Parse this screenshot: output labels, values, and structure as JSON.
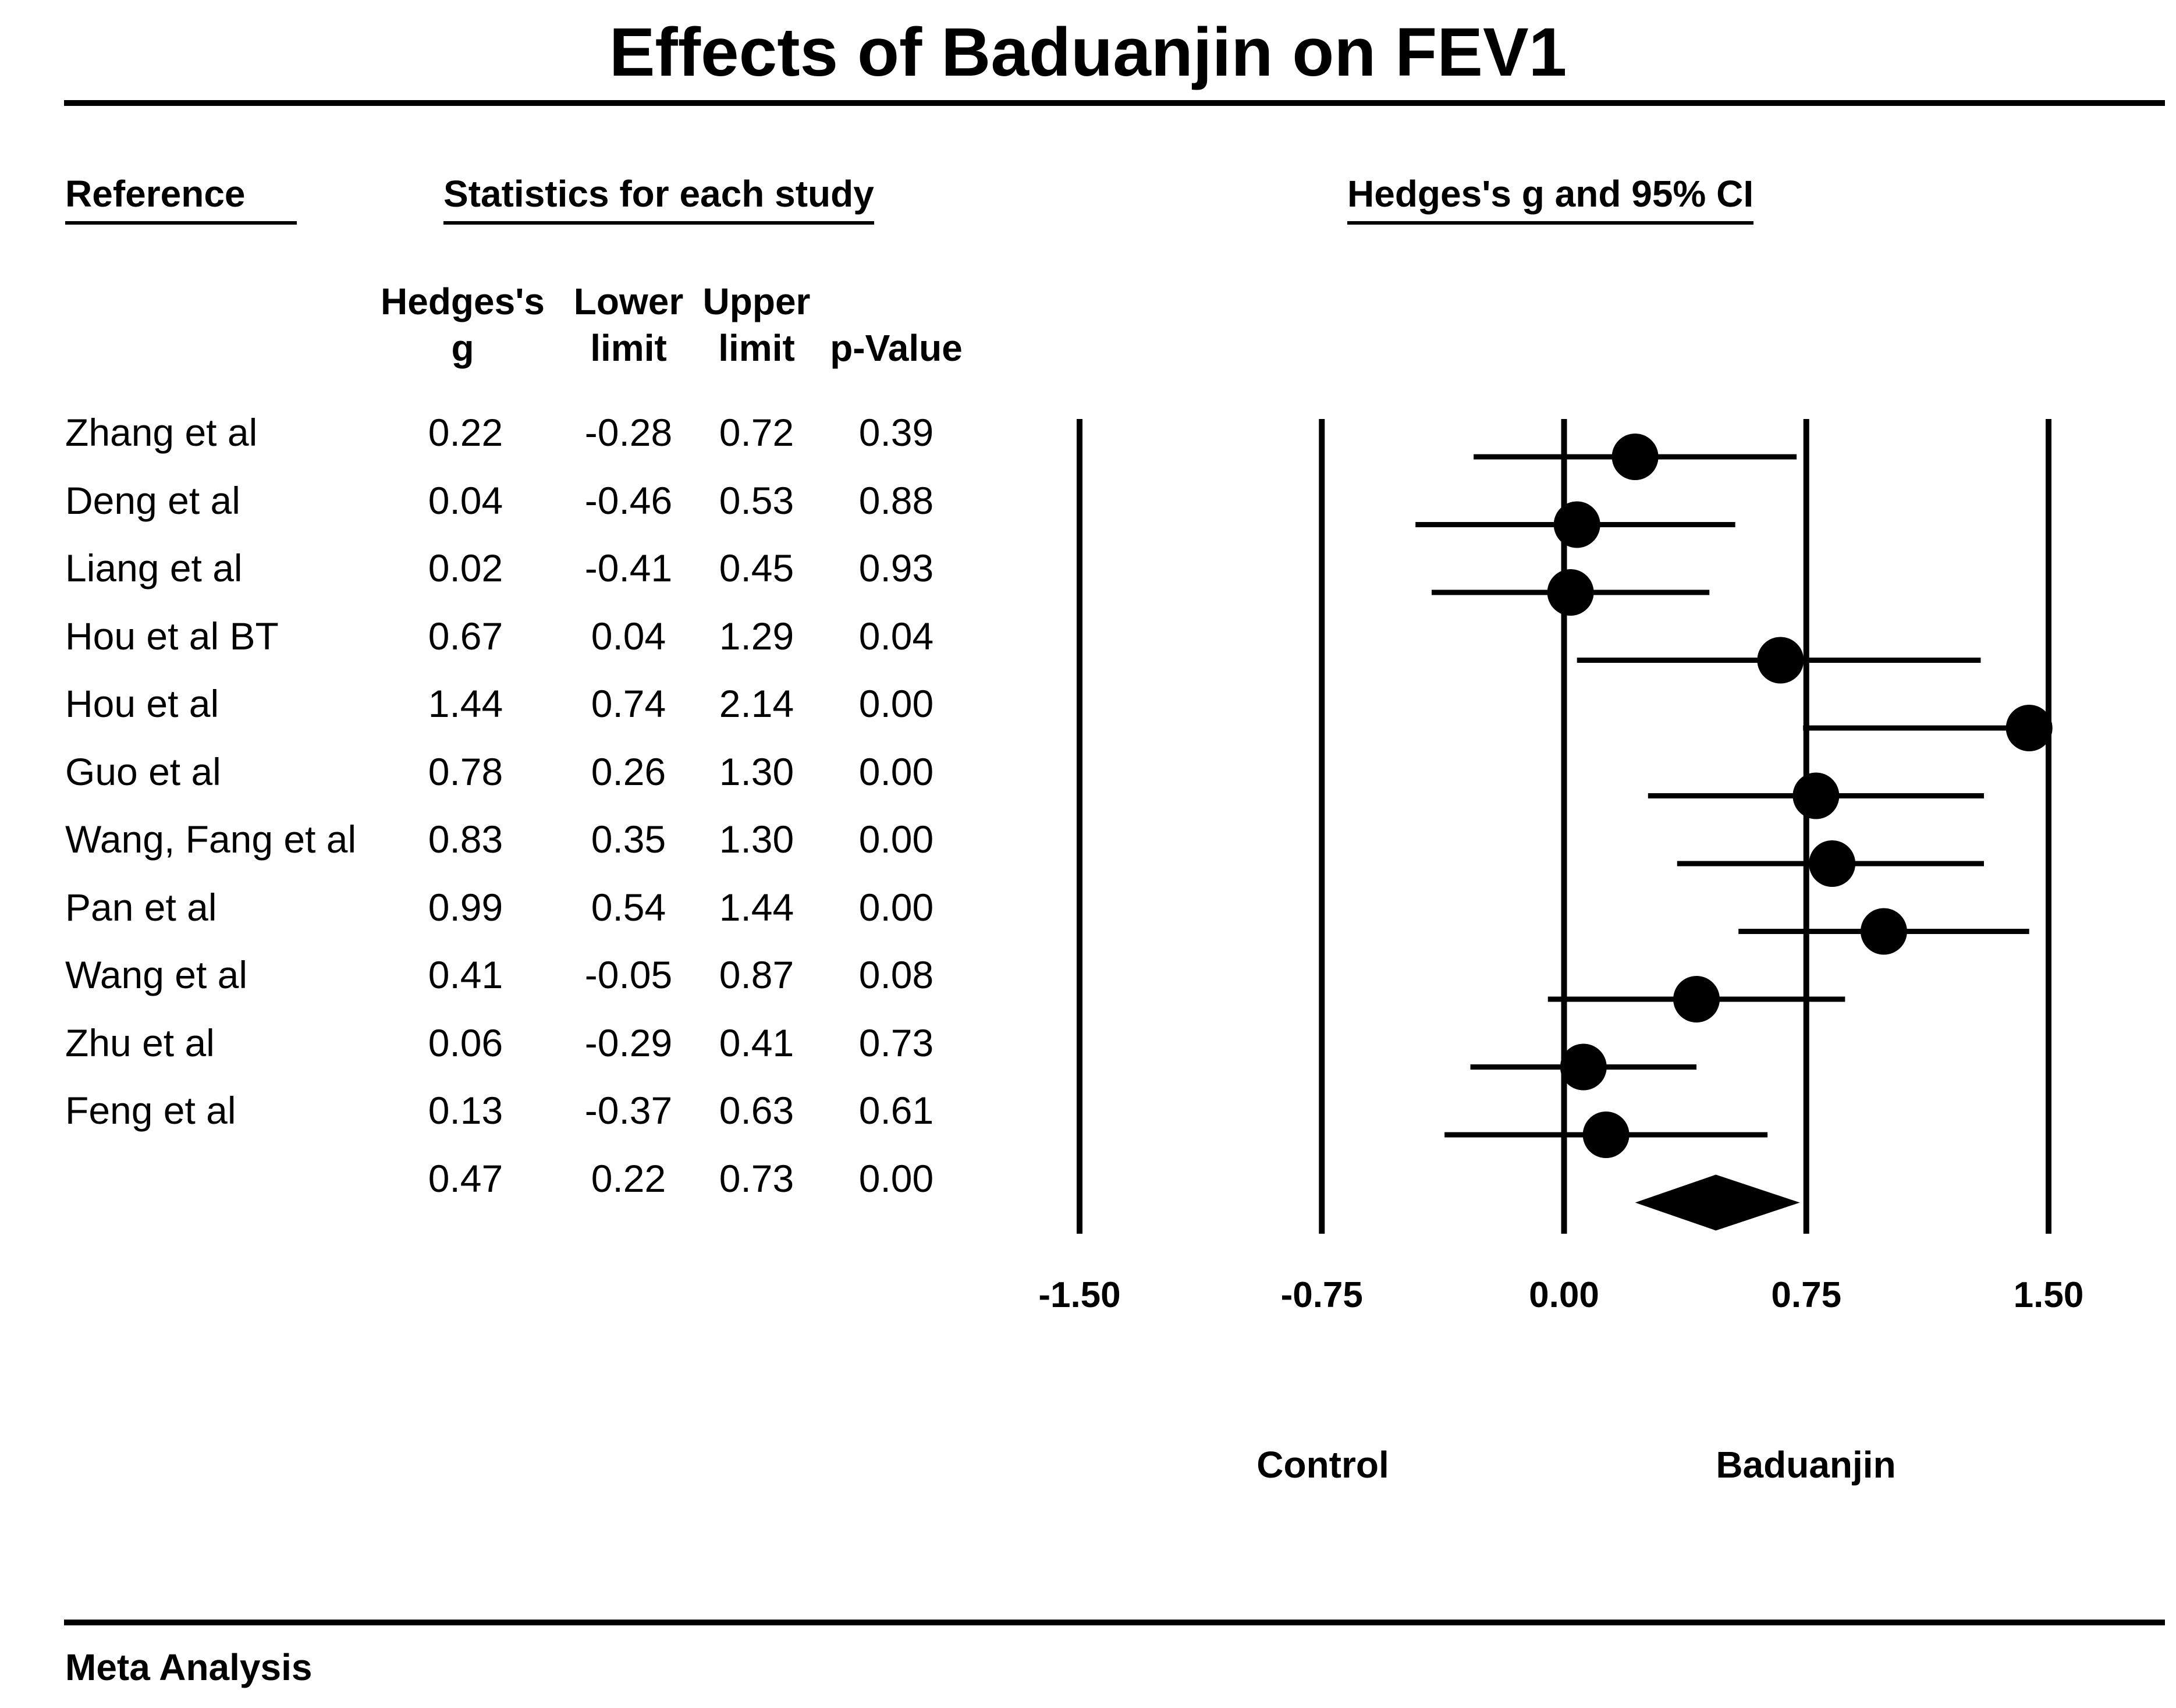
{
  "title": "Effects of Baduanjin on FEV1",
  "headers": {
    "reference": "Reference",
    "statistics": "Statistics for each study",
    "ci_heading": "Hedges's g and 95% CI",
    "columns": [
      {
        "line1": "Hedges's",
        "line2": "g"
      },
      {
        "line1": "Lower",
        "line2": "limit"
      },
      {
        "line1": "Upper",
        "line2": "limit"
      },
      {
        "line1": "",
        "line2": "p-Value"
      }
    ]
  },
  "footer": "Meta Analysis",
  "chart_data": {
    "type": "forest",
    "title": "Effects of Baduanjin on FEV1",
    "xlabel": "Hedges's g and 95% CI",
    "xlim": [
      -1.5,
      1.5
    ],
    "ticks": [
      -1.5,
      -0.75,
      0,
      0.75,
      1.5
    ],
    "tick_labels": [
      "-1.50",
      "-0.75",
      "0.00",
      "0.75",
      "1.50"
    ],
    "left_label": "Control",
    "right_label": "Baduanjin",
    "studies": [
      {
        "name": "Zhang et al",
        "g": "0.22",
        "lower": "-0.28",
        "upper": "0.72",
        "p": "0.39"
      },
      {
        "name": "Deng et al",
        "g": "0.04",
        "lower": "-0.46",
        "upper": "0.53",
        "p": "0.88"
      },
      {
        "name": "Liang et al",
        "g": "0.02",
        "lower": "-0.41",
        "upper": "0.45",
        "p": "0.93"
      },
      {
        "name": "Hou et al  BT",
        "g": "0.67",
        "lower": "0.04",
        "upper": "1.29",
        "p": "0.04"
      },
      {
        "name": "Hou et al",
        "g": "1.44",
        "lower": "0.74",
        "upper": "2.14",
        "p": "0.00"
      },
      {
        "name": "Guo et al",
        "g": "0.78",
        "lower": "0.26",
        "upper": "1.30",
        "p": "0.00"
      },
      {
        "name": "Wang, Fang et al",
        "g": "0.83",
        "lower": "0.35",
        "upper": "1.30",
        "p": "0.00"
      },
      {
        "name": "Pan et al",
        "g": "0.99",
        "lower": "0.54",
        "upper": "1.44",
        "p": "0.00"
      },
      {
        "name": "Wang et al",
        "g": "0.41",
        "lower": "-0.05",
        "upper": "0.87",
        "p": "0.08"
      },
      {
        "name": "Zhu et al",
        "g": "0.06",
        "lower": "-0.29",
        "upper": "0.41",
        "p": "0.73"
      },
      {
        "name": "Feng et al",
        "g": "0.13",
        "lower": "-0.37",
        "upper": "0.63",
        "p": "0.61"
      }
    ],
    "summary": {
      "name": "",
      "g": "0.47",
      "lower": "0.22",
      "upper": "0.73",
      "p": "0.00"
    }
  }
}
